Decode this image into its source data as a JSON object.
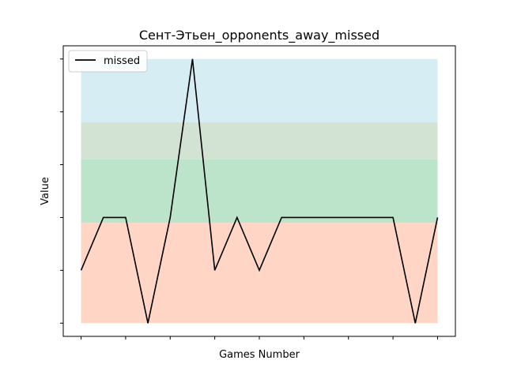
{
  "chart_data": {
    "type": "line",
    "title": "Сент-Этьен_opponents_away_missed",
    "xlabel": "Games Number",
    "ylabel": "Value",
    "x": [
      0,
      1,
      2,
      3,
      4,
      5,
      6,
      7,
      8,
      9,
      10,
      11,
      12,
      13,
      14,
      15,
      16
    ],
    "series": [
      {
        "name": "missed",
        "color": "#000000",
        "values": [
          1,
          2,
          2,
          0,
          2,
          5,
          1,
          2,
          1,
          2,
          2,
          2,
          2,
          2,
          2,
          0,
          2
        ]
      }
    ],
    "xlim": [
      -0.8,
      16.8
    ],
    "ylim": [
      -0.25,
      5.25
    ],
    "x_ticks": [
      0,
      2,
      4,
      6,
      8,
      10,
      12,
      14,
      16
    ],
    "y_ticks": [
      0,
      1,
      2,
      3,
      4,
      5
    ],
    "tick_labels_shown": false,
    "bands": [
      {
        "y0": 0,
        "y1": 1.9,
        "color": "#ffc0a8",
        "opacity": 0.65
      },
      {
        "y0": 1.9,
        "y1": 3.1,
        "color": "#a0d9b4",
        "opacity": 0.7
      },
      {
        "y0": 3.1,
        "y1": 3.8,
        "color": "#c8dcc8",
        "opacity": 0.8
      },
      {
        "y0": 3.8,
        "y1": 5,
        "color": "#c8e8ef",
        "opacity": 0.75
      }
    ],
    "legend": {
      "position": "top-left",
      "entries": [
        "missed"
      ]
    },
    "grid": false
  }
}
